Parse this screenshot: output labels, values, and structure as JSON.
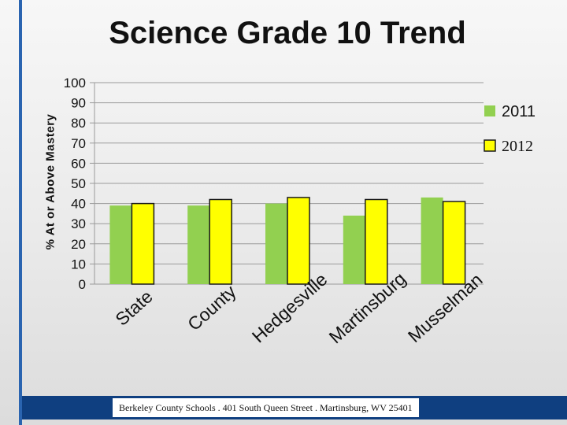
{
  "slide": {
    "title": "Science Grade 10 Trend",
    "footer": "Berkeley County Schools . 401 South Queen Street . Martinsburg, WV  25401"
  },
  "colors": {
    "series_2011": "#92d050",
    "series_2012": "#ffff00",
    "grid": "#9a9a9a",
    "accent_rule": "#2a64b0",
    "footer_bar": "#0f3f80"
  },
  "chart_data": {
    "type": "bar",
    "title": "Science Grade 10 Trend",
    "xlabel": "",
    "ylabel": "% At or Above Mastery",
    "ylim": [
      0,
      100
    ],
    "yticks": [
      0,
      10,
      20,
      30,
      40,
      50,
      60,
      70,
      80,
      90,
      100
    ],
    "grid": true,
    "legend_position": "right",
    "categories": [
      "State",
      "County",
      "Hedgesville",
      "Martinsburg",
      "Musselman"
    ],
    "series": [
      {
        "name": "2011",
        "values": [
          39,
          39,
          40,
          34,
          43
        ]
      },
      {
        "name": "2012",
        "values": [
          40,
          42,
          43,
          42,
          41
        ]
      }
    ]
  }
}
